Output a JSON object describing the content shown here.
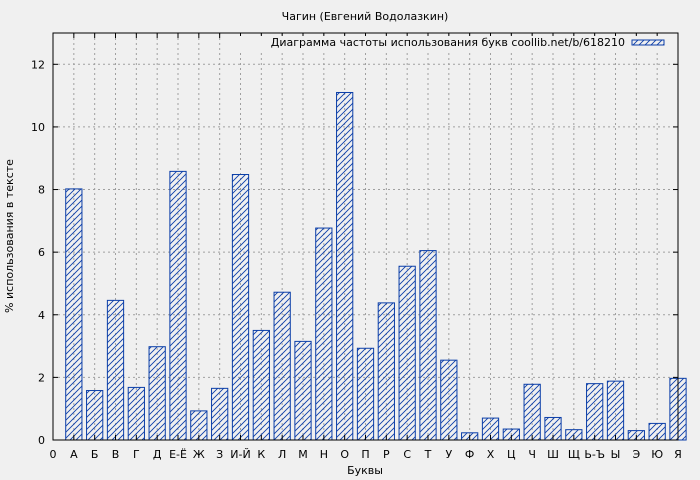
{
  "chart_data": {
    "type": "bar",
    "title": "Чагин (Евгений Водолазкин)",
    "xlabel": "Буквы",
    "ylabel": "% использования в тексте",
    "legend": {
      "label": "Диаграмма частоты использования букв coollib.net/b/618210",
      "position": "top-right"
    },
    "grid": true,
    "ylim": [
      0,
      13
    ],
    "yticks": [
      0,
      2,
      4,
      6,
      8,
      10,
      12
    ],
    "xtick_labels": [
      "0",
      "А",
      "Б",
      "В",
      "Г",
      "Д",
      "Е-Ё",
      "Ж",
      "З",
      "И-Й",
      "К",
      "Л",
      "М",
      "Н",
      "О",
      "П",
      "Р",
      "С",
      "Т",
      "У",
      "Ф",
      "Х",
      "Ц",
      "Ч",
      "Ш",
      "Щ",
      "Ь-Ъ",
      "Ы",
      "Э",
      "Ю",
      "Я"
    ],
    "categories": [
      "А",
      "Б",
      "В",
      "Г",
      "Д",
      "Е-Ё",
      "Ж",
      "З",
      "И-Й",
      "К",
      "Л",
      "М",
      "Н",
      "О",
      "П",
      "Р",
      "С",
      "Т",
      "У",
      "Ф",
      "Х",
      "Ц",
      "Ч",
      "Ш",
      "Щ",
      "Ь-Ъ",
      "Ы",
      "Э",
      "Ю",
      "Я"
    ],
    "values": [
      8.02,
      1.58,
      4.46,
      1.68,
      2.98,
      8.58,
      0.93,
      1.65,
      8.48,
      3.5,
      4.72,
      3.15,
      6.77,
      11.1,
      2.93,
      4.38,
      5.55,
      6.05,
      2.55,
      0.23,
      0.7,
      0.35,
      1.78,
      0.72,
      0.33,
      1.8,
      1.88,
      0.3,
      0.53,
      1.97
    ],
    "colors": {
      "bar_stroke": "#0b3ea8",
      "grid": "#a0a0a0",
      "plot_bg": "#f0f0f0"
    }
  }
}
